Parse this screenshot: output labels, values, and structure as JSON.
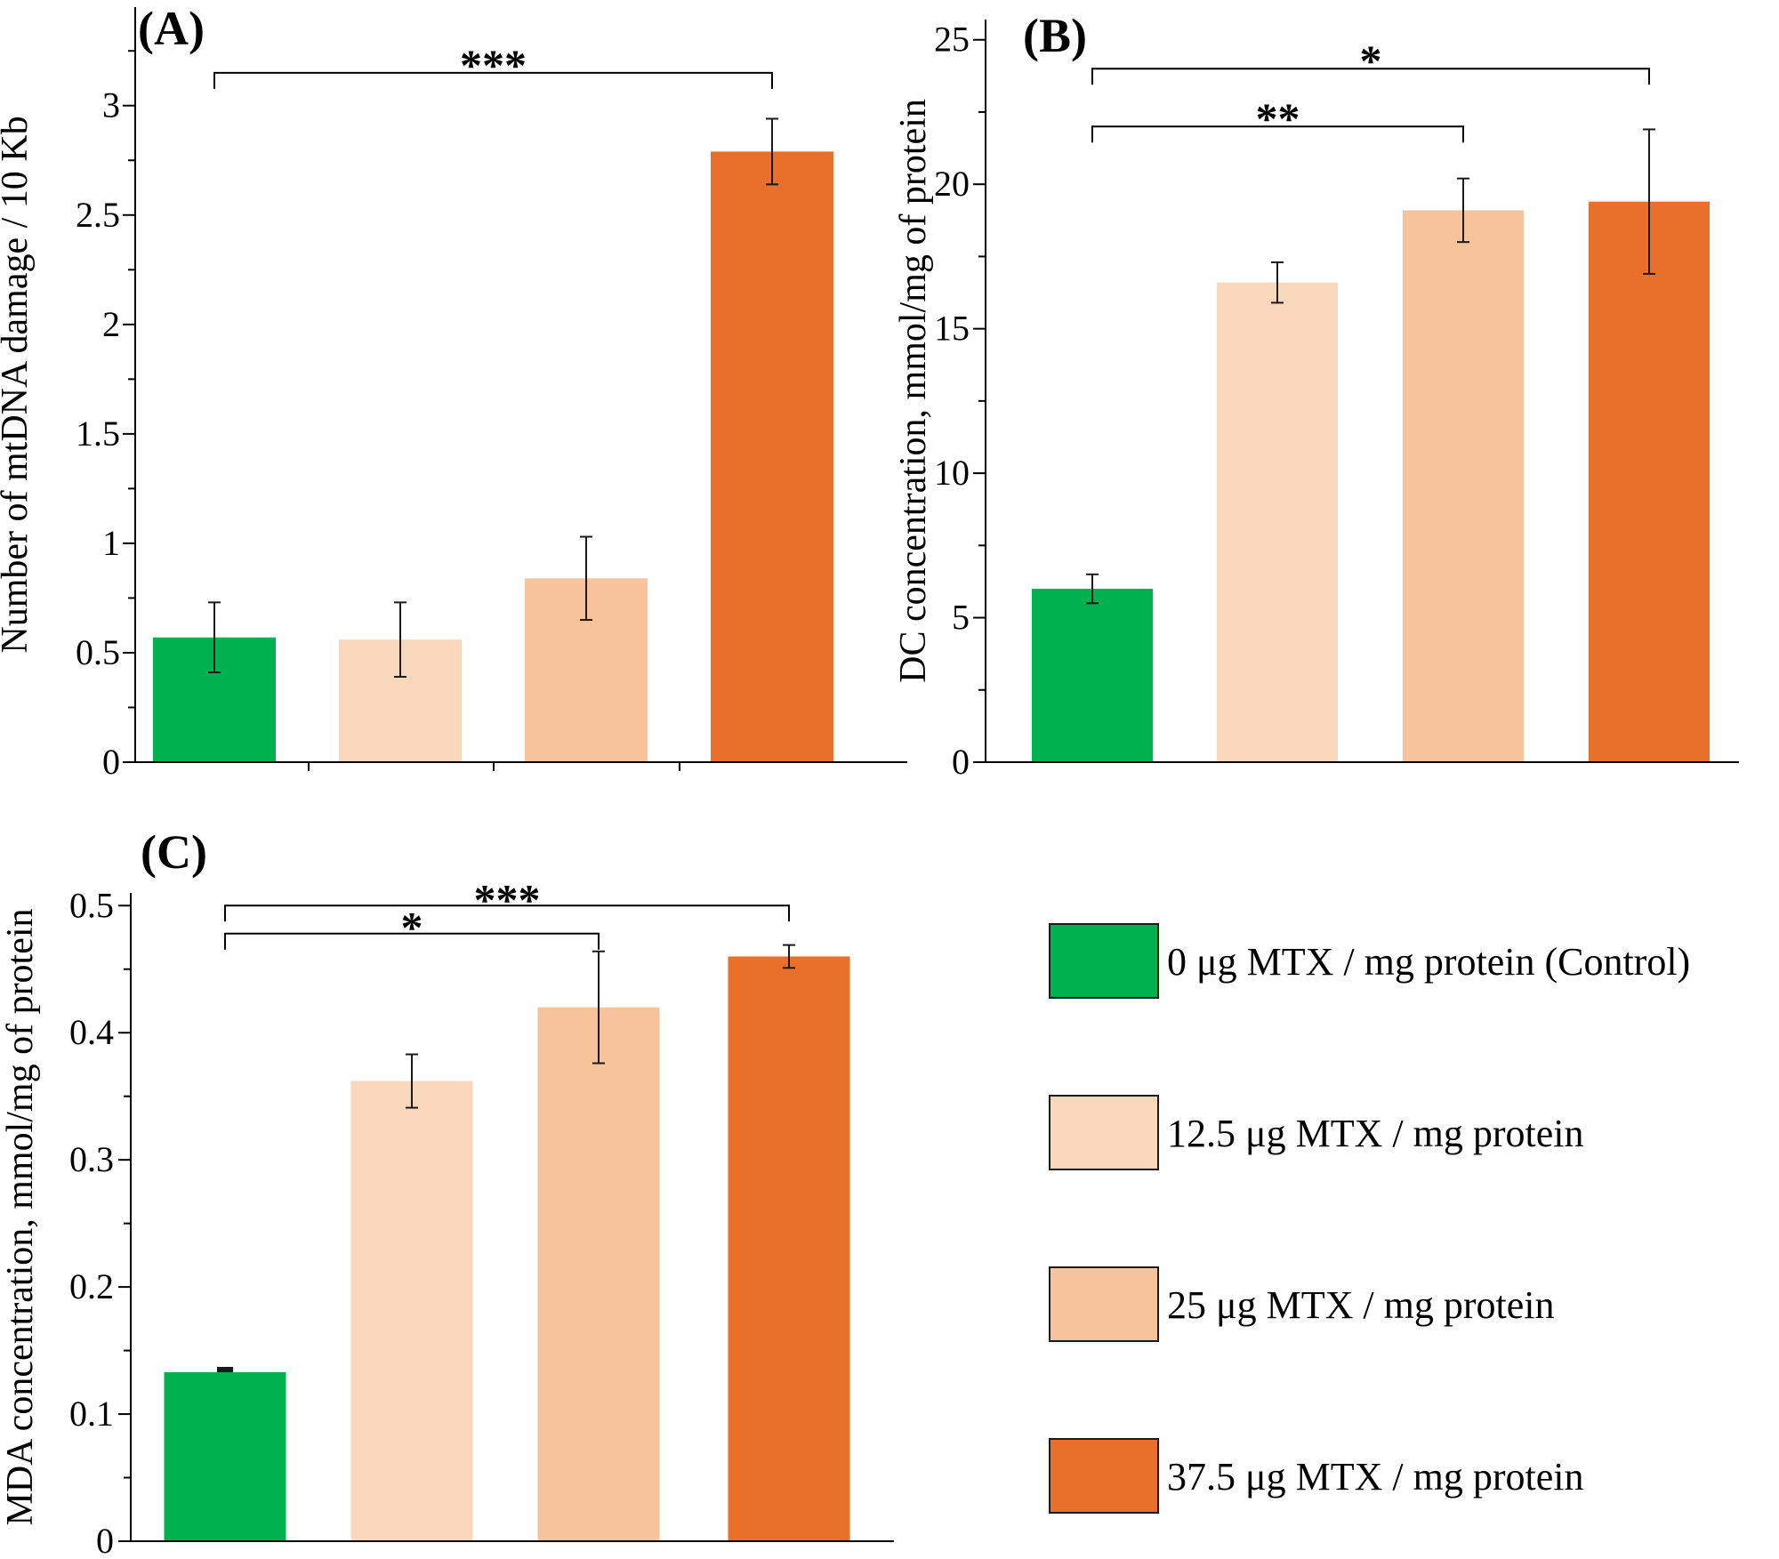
{
  "colors": {
    "control": "#00b14f",
    "dose_12_5": "#f9d7bb",
    "dose_25": "#f6c39b",
    "dose_37_5": "#e8702a",
    "axis": "#000000"
  },
  "legend": {
    "items": [
      {
        "label": "0 μg MTX / mg protein (Control)",
        "color": "#00b14f"
      },
      {
        "label": "12.5 μg MTX / mg protein",
        "color": "#f9d7bb"
      },
      {
        "label": "25 μg MTX / mg protein",
        "color": "#f6c39b"
      },
      {
        "label": "37.5 μg MTX / mg protein",
        "color": "#e8702a"
      }
    ]
  },
  "chart_data": [
    {
      "type": "bar",
      "panel": "(A)",
      "ylabel": "Number of mtDNA damage / 10 Kb",
      "ylim": [
        0,
        3.45
      ],
      "yticks": [
        0,
        0.5,
        1,
        1.5,
        2,
        2.5,
        3
      ],
      "ytick_labels": [
        "0",
        "0.5",
        "1",
        "1.5",
        "2",
        "2.5",
        "3"
      ],
      "categories": [
        "0 μg MTX / mg protein (Control)",
        "12.5 μg MTX / mg protein",
        "25 μg MTX / mg protein",
        "37.5 μg MTX / mg protein"
      ],
      "values": [
        0.57,
        0.56,
        0.84,
        2.79
      ],
      "errors": [
        0.16,
        0.17,
        0.19,
        0.15
      ],
      "significance": [
        {
          "from": 0,
          "to": 3,
          "label": "***",
          "y": 3.15
        }
      ]
    },
    {
      "type": "bar",
      "panel": "(B)",
      "ylabel": "DC concentration, mmol/mg of protein",
      "ylim": [
        0,
        25.7
      ],
      "yticks": [
        0,
        5,
        10,
        15,
        20,
        25
      ],
      "ytick_labels": [
        "0",
        "5",
        "10",
        "15",
        "20",
        "25"
      ],
      "categories": [
        "0 μg MTX / mg protein (Control)",
        "12.5 μg MTX / mg protein",
        "25 μg MTX / mg protein",
        "37.5 μg MTX / mg protein"
      ],
      "values": [
        6.0,
        16.6,
        19.1,
        19.4
      ],
      "errors": [
        0.5,
        0.7,
        1.1,
        2.5
      ],
      "significance": [
        {
          "from": 0,
          "to": 2,
          "label": "**",
          "y": 22.0
        },
        {
          "from": 0,
          "to": 3,
          "label": "*",
          "y": 24.0
        }
      ]
    },
    {
      "type": "bar",
      "panel": "(C)",
      "ylabel": "MDA concentration, mmol/mg of protein",
      "ylim": [
        0,
        0.51
      ],
      "yticks": [
        0,
        0.1,
        0.2,
        0.3,
        0.4,
        0.5
      ],
      "ytick_labels": [
        "0",
        "0.1",
        "0.2",
        "0.3",
        "0.4",
        "0.5"
      ],
      "categories": [
        "0 μg MTX / mg protein (Control)",
        "12.5 μg MTX / mg protein",
        "25 μg MTX / mg protein",
        "37.5 μg MTX / mg protein"
      ],
      "values": [
        0.133,
        0.362,
        0.42,
        0.46
      ],
      "errors": [
        0.002,
        0.021,
        0.044,
        0.009
      ],
      "significance": [
        {
          "from": 0,
          "to": 2,
          "label": "*",
          "y": 0.478
        },
        {
          "from": 0,
          "to": 3,
          "label": "***",
          "y": 0.5
        }
      ]
    }
  ]
}
